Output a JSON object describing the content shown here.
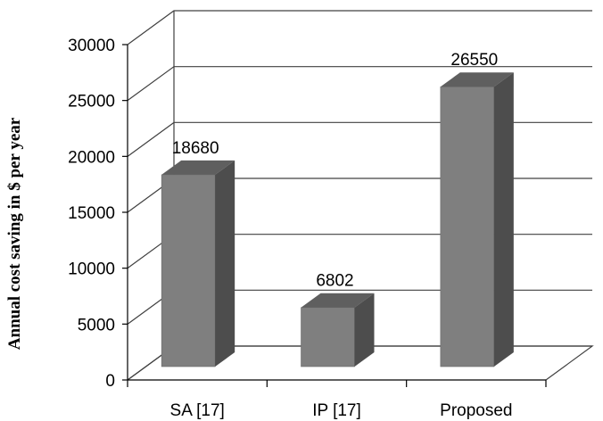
{
  "chart_data": {
    "type": "bar",
    "style": "3d",
    "categories": [
      "SA [17]",
      "IP [17]",
      "Proposed"
    ],
    "values": [
      18680,
      6802,
      26550
    ],
    "data_labels": [
      "18680",
      "6802",
      "26550"
    ],
    "title": "",
    "xlabel": "",
    "ylabel": "Annual cost saving in  $ per year",
    "ylim": [
      0,
      30000
    ],
    "yticks": [
      0,
      5000,
      10000,
      15000,
      20000,
      25000,
      30000
    ],
    "grid": true,
    "legend": "none",
    "colors": {
      "bar_front": "#7f7f7f",
      "bar_top": "#5f5f5f",
      "bar_side": "#4d4d4d",
      "grid": "#404040"
    }
  }
}
